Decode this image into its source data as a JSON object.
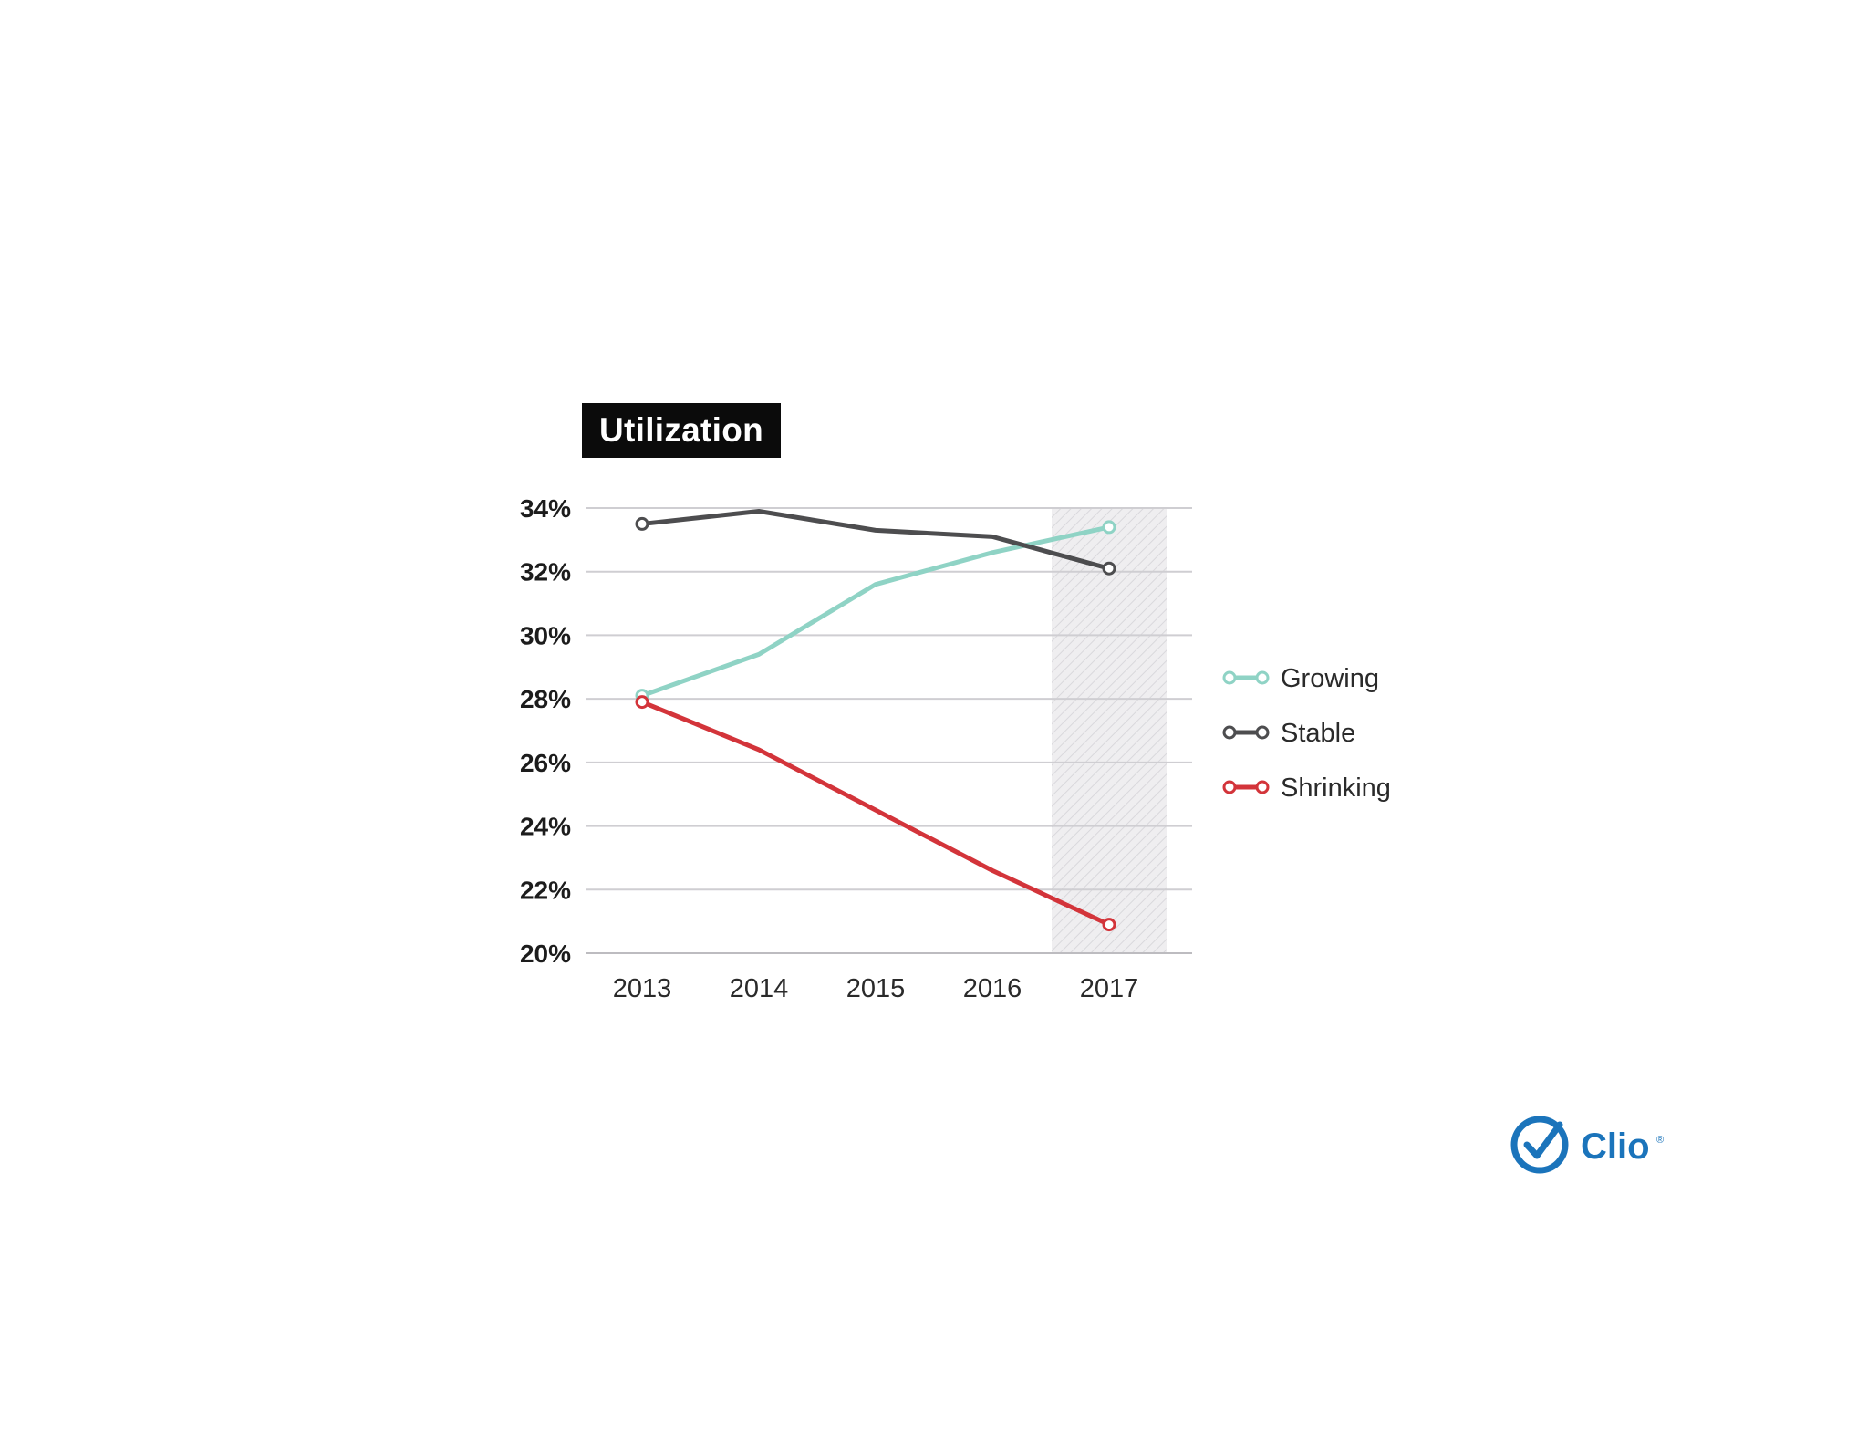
{
  "chart_data": {
    "type": "line",
    "title": "Utilization",
    "categories": [
      "2013",
      "2014",
      "2015",
      "2016",
      "2017"
    ],
    "series": [
      {
        "name": "Growing",
        "values": [
          28.1,
          29.4,
          31.6,
          32.6,
          33.4
        ],
        "color": "#8fd3c5"
      },
      {
        "name": "Stable",
        "values": [
          33.5,
          33.9,
          33.3,
          33.1,
          32.1
        ],
        "color": "#4d4d4f"
      },
      {
        "name": "Shrinking",
        "values": [
          27.9,
          26.4,
          24.5,
          22.6,
          20.9
        ],
        "color": "#d3343a"
      }
    ],
    "yticks": [
      "34%",
      "32%",
      "30%",
      "28%",
      "26%",
      "24%",
      "22%",
      "20%"
    ],
    "ylim": [
      20,
      34
    ],
    "grid": true,
    "highlight_category": "2017",
    "legend_position": "right",
    "xlabel": "",
    "ylabel": ""
  },
  "logo": {
    "text": "Clio",
    "mark": "®",
    "color": "#1b74bb"
  }
}
